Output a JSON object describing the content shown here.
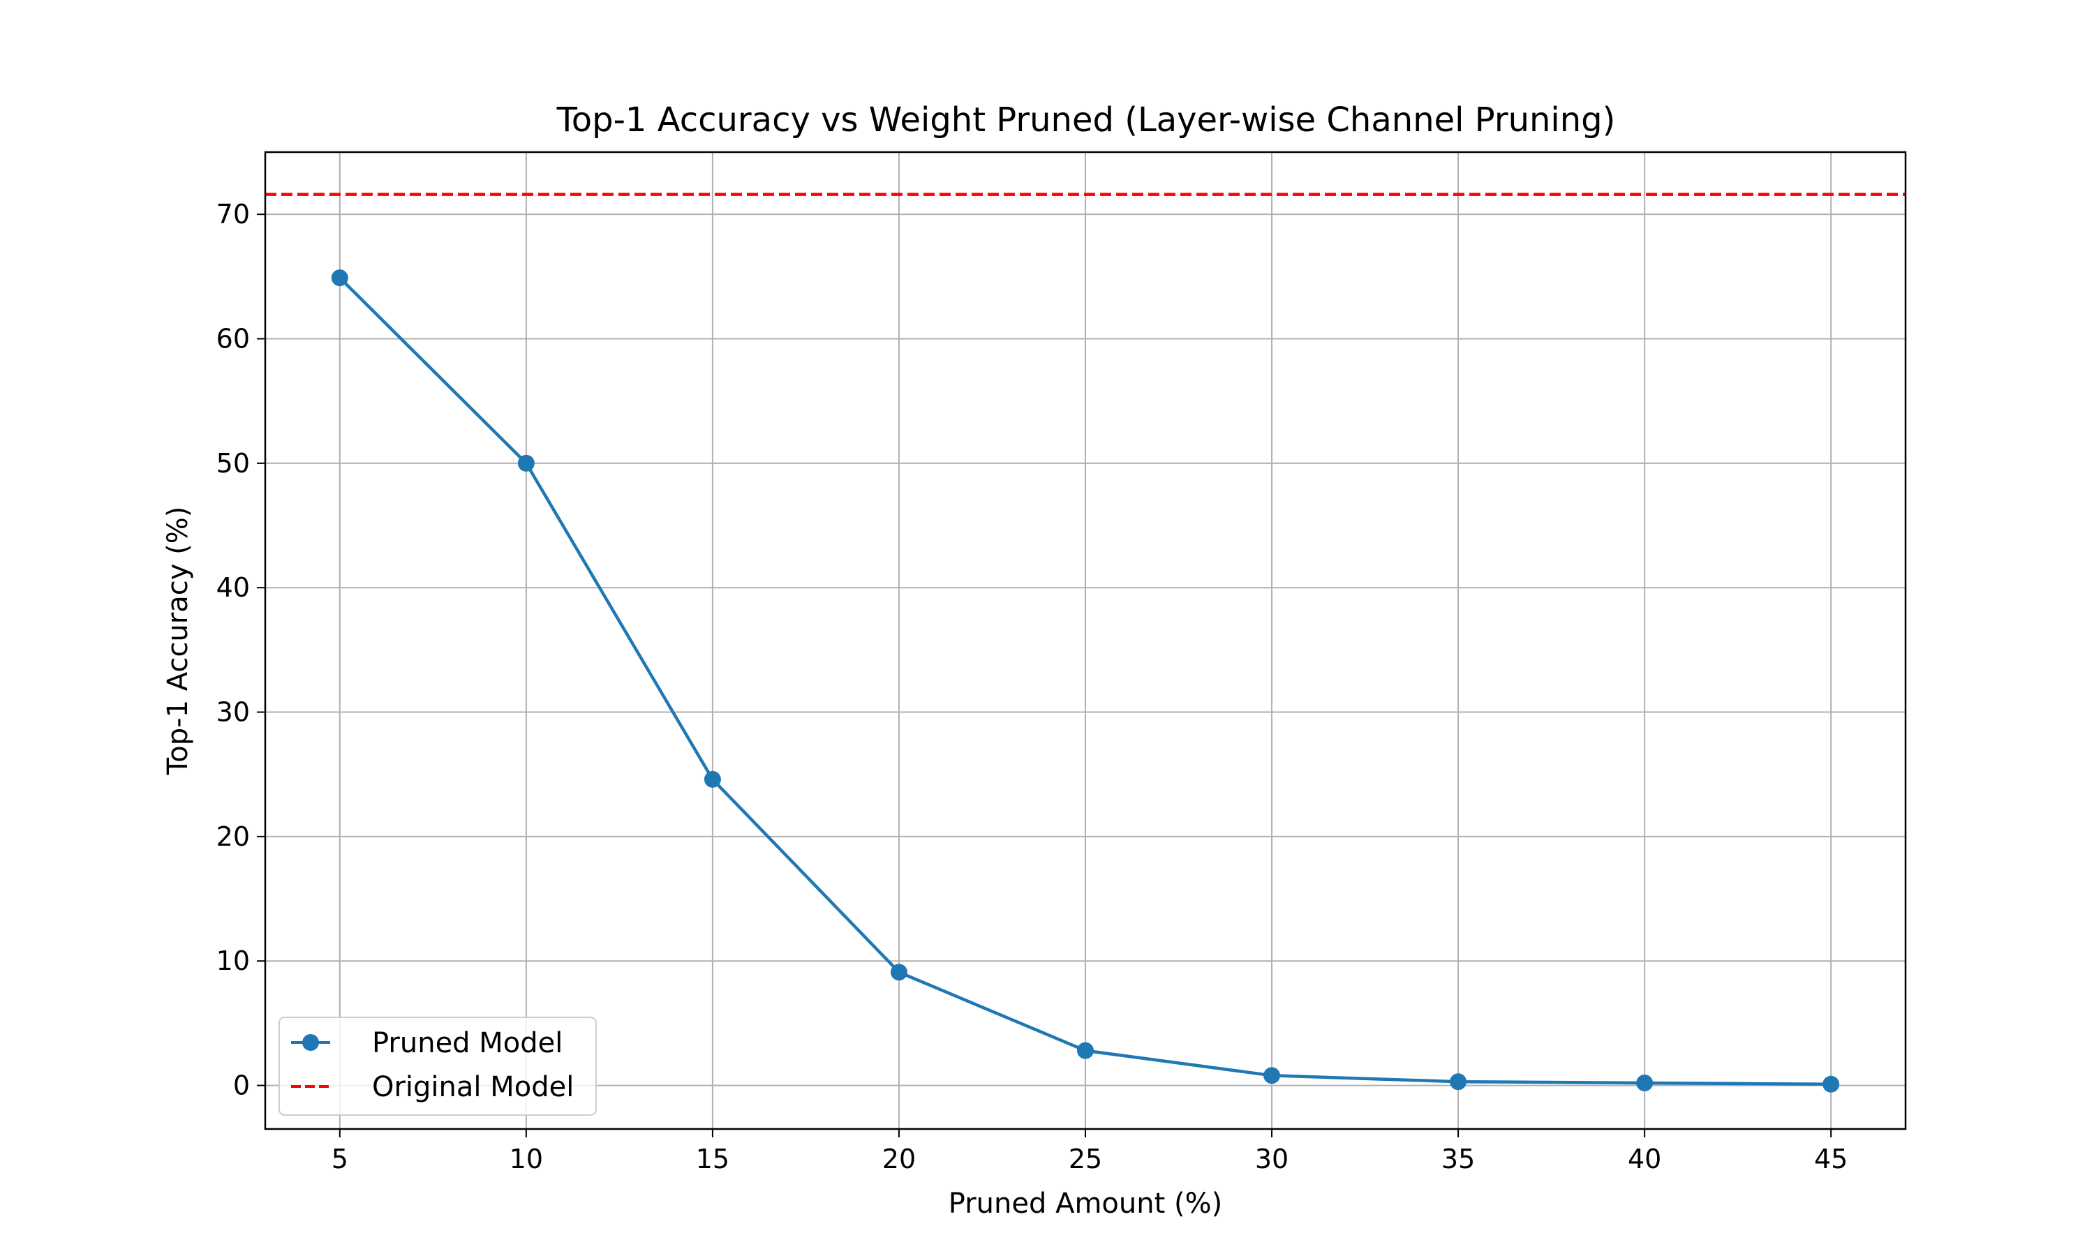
{
  "chart_data": {
    "type": "line",
    "title": "Top-1 Accuracy vs Weight Pruned (Layer-wise Channel Pruning)",
    "xlabel": "Pruned Amount (%)",
    "ylabel": "Top-1 Accuracy (%)",
    "x": [
      5,
      10,
      15,
      20,
      25,
      30,
      35,
      40,
      45
    ],
    "xticks": [
      5,
      10,
      15,
      20,
      25,
      30,
      35,
      40,
      45
    ],
    "yticks": [
      0,
      10,
      20,
      30,
      40,
      50,
      60,
      70
    ],
    "xlim": [
      3,
      47
    ],
    "ylim": [
      -3.5,
      75
    ],
    "grid": true,
    "legend_position": "lower-left",
    "series": [
      {
        "name": "Pruned Model",
        "style": "solid-with-markers",
        "color": "#1f77b4",
        "values": [
          64.9,
          50.0,
          24.6,
          9.1,
          2.8,
          0.8,
          0.3,
          0.2,
          0.1
        ]
      },
      {
        "name": "Original Model",
        "style": "dashed",
        "color": "#ff0000",
        "constant": 71.6
      }
    ]
  }
}
